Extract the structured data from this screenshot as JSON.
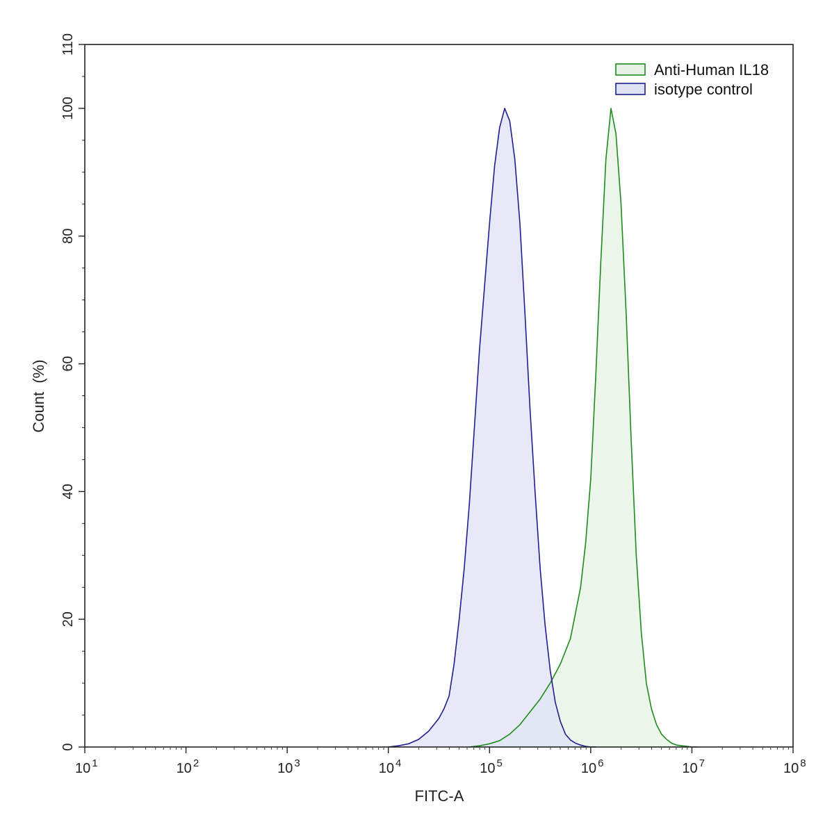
{
  "chart_data": {
    "type": "area",
    "xlabel": "FITC-A",
    "ylabel": "Count  (%)",
    "x_scale": "log",
    "xlim": [
      10,
      100000000
    ],
    "ylim": [
      0,
      110
    ],
    "x_ticks": [
      {
        "base": "10",
        "exp": "1"
      },
      {
        "base": "10",
        "exp": "2"
      },
      {
        "base": "10",
        "exp": "3"
      },
      {
        "base": "10",
        "exp": "4"
      },
      {
        "base": "10",
        "exp": "5"
      },
      {
        "base": "10",
        "exp": "6"
      },
      {
        "base": "10",
        "exp": "7"
      },
      {
        "base": "10",
        "exp": "8"
      }
    ],
    "y_ticks": [
      "0",
      "20",
      "40",
      "60",
      "80",
      "100",
      "110"
    ],
    "legend_position": "top-right",
    "grid": false,
    "series": [
      {
        "name": "Anti-Human IL18",
        "line_color": "#1e8a1e",
        "fill_color": "#e6f3e4",
        "x": [
          63000,
          80000,
          100000,
          126000,
          158000,
          200000,
          251000,
          316000,
          398000,
          501000,
          631000,
          708000,
          794000,
          891000,
          1000000,
          1122000,
          1259000,
          1413000,
          1585000,
          1778000,
          1995000,
          2239000,
          2512000,
          2818000,
          3162000,
          3548000,
          3981000,
          4467000,
          5012000,
          5623000,
          6310000,
          7079000,
          7943000,
          8913000,
          10000000,
          11220000
        ],
        "y": [
          0,
          0.2,
          0.5,
          1,
          2,
          3.5,
          5.5,
          7.5,
          10,
          13,
          17,
          21,
          25,
          32,
          42,
          58,
          76,
          92,
          100,
          96,
          85,
          68,
          48,
          30,
          18,
          10,
          6,
          3.5,
          2,
          1.2,
          0.6,
          0.3,
          0.2,
          0.1,
          0,
          0
        ]
      },
      {
        "name": "isotype control",
        "line_color": "#1e1e8e",
        "fill_color": "#dfe1f7",
        "x": [
          10000,
          12589,
          15849,
          19953,
          25119,
          31623,
          35481,
          39811,
          44668,
          50119,
          56234,
          63096,
          70795,
          79433,
          89125,
          100000,
          112202,
          125893,
          141254,
          158489,
          177828,
          199526,
          223872,
          251189,
          281838,
          316228,
          354813,
          398107,
          446684,
          501187,
          562341,
          630957,
          707946,
          794328,
          891251,
          1000000,
          1122018
        ],
        "y": [
          0,
          0.2,
          0.5,
          1.2,
          2.5,
          4.5,
          6,
          8,
          13,
          20,
          28,
          38,
          50,
          62,
          72,
          82,
          91,
          97,
          100,
          98,
          92,
          82,
          68,
          53,
          40,
          28,
          19,
          12,
          7,
          4,
          2,
          1.1,
          0.6,
          0.3,
          0.1,
          0,
          0
        ]
      }
    ]
  }
}
